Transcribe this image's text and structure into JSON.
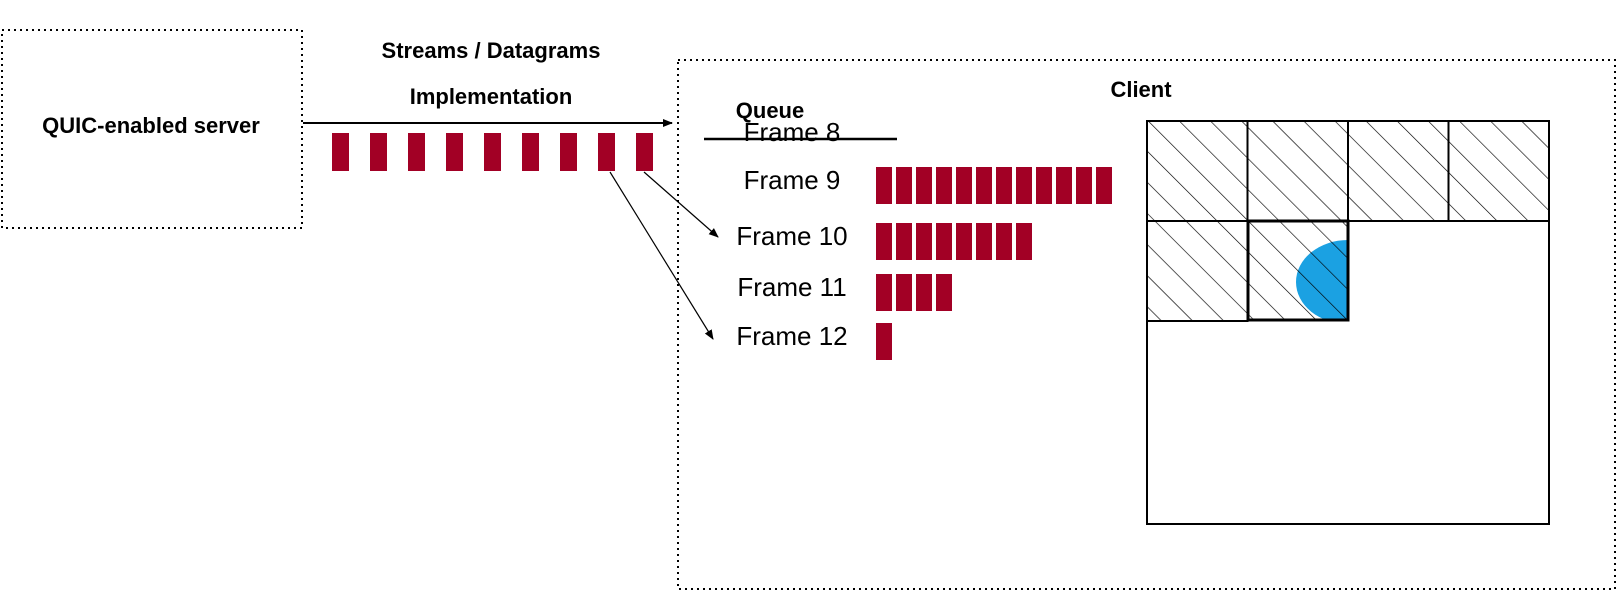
{
  "server": {
    "label": "QUIC-enabled server"
  },
  "link": {
    "line1": "Streams / Datagrams",
    "line2": "Implementation"
  },
  "client": {
    "label": "Client"
  },
  "queue": {
    "title": "Queue",
    "frames": [
      {
        "label": "Frame 8",
        "packets": 0,
        "dropped": true
      },
      {
        "label": "Frame 9",
        "packets": 12,
        "dropped": false
      },
      {
        "label": "Frame 10",
        "packets": 8,
        "dropped": false
      },
      {
        "label": "Frame 11",
        "packets": 4,
        "dropped": false
      },
      {
        "label": "Frame 12",
        "packets": 1,
        "dropped": false
      }
    ]
  },
  "in_transit_packets": 9,
  "colors": {
    "packet": "#a20025",
    "focus": "#1ba1e2"
  },
  "grid": {
    "columns": 4,
    "rows": 4,
    "hatched_tiles": 6
  }
}
